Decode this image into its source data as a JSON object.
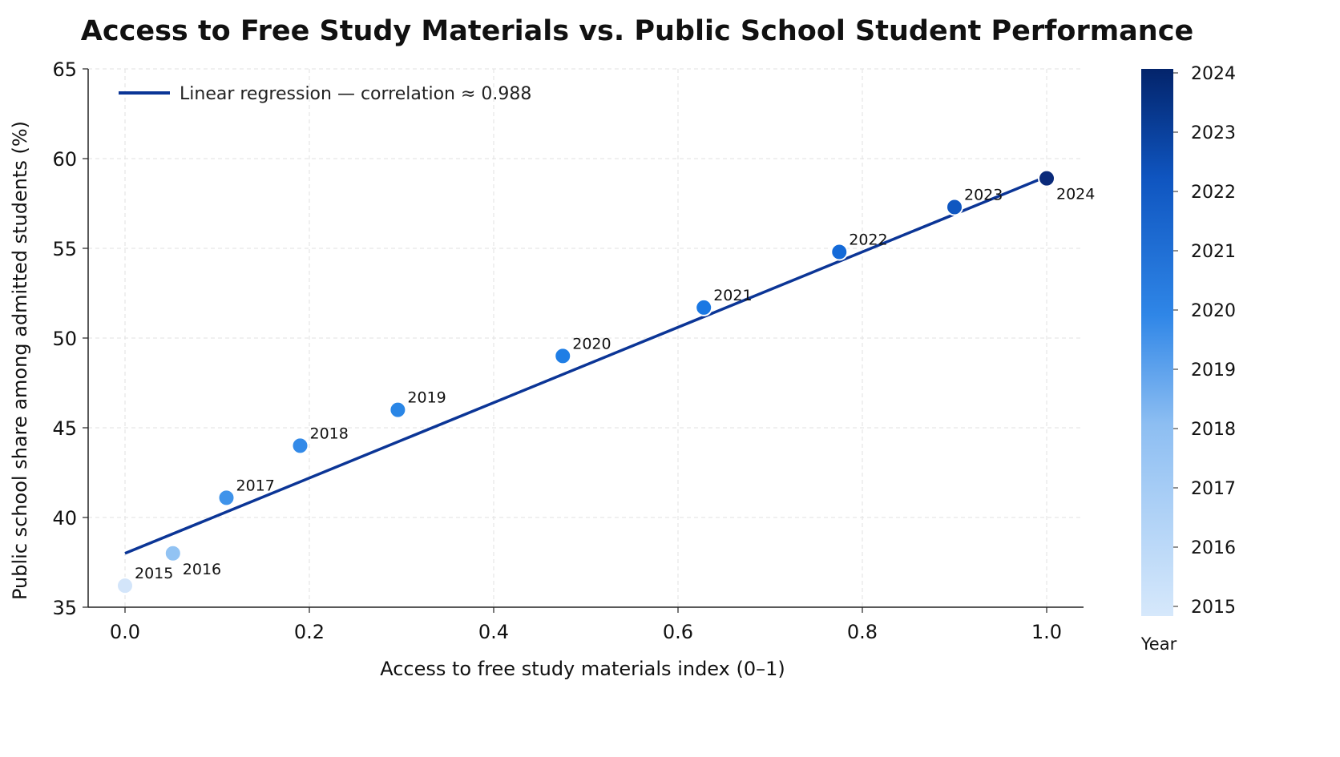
{
  "chart_data": {
    "type": "scatter",
    "title": "Access to Free Study Materials vs. Public School Student Performance",
    "xlabel": "Access to free study materials index (0–1)",
    "ylabel": "Public school share among admitted students (%)",
    "xlim": [
      -0.04,
      1.04
    ],
    "ylim": [
      35,
      65
    ],
    "xticks": [
      0.0,
      0.2,
      0.4,
      0.6,
      0.8,
      1.0
    ],
    "xtick_labels": [
      "0.0",
      "0.2",
      "0.4",
      "0.6",
      "0.8",
      "1.0"
    ],
    "yticks": [
      35,
      40,
      45,
      50,
      55,
      60,
      65
    ],
    "ytick_labels": [
      "35",
      "40",
      "45",
      "50",
      "55",
      "60",
      "65"
    ],
    "grid": true,
    "series": [
      {
        "x": [
          0.0,
          0.052,
          0.11,
          0.19,
          0.296,
          0.475,
          0.628,
          0.775,
          0.9,
          1.0
        ],
        "y": [
          36.2,
          38.0,
          41.1,
          44.0,
          46.0,
          49.0,
          51.7,
          54.8,
          57.3,
          58.9
        ],
        "labels": [
          "2015",
          "2016",
          "2017",
          "2018",
          "2019",
          "2020",
          "2021",
          "2022",
          "2023",
          "2024"
        ],
        "colors": [
          "#d3e5fa",
          "#92c3f3",
          "#3f93ea",
          "#338ae8",
          "#2a86e6",
          "#1f7ee5",
          "#1a78e3",
          "#146ad8",
          "#0f57c1",
          "#0a2a7a"
        ]
      }
    ],
    "regression": {
      "name": "Linear regression — correlation ≈ 0.988",
      "x": [
        0.0,
        1.0
      ],
      "y": [
        38.0,
        59.0
      ],
      "color": "#0b3596"
    },
    "legend_position": "top-left",
    "colorbar": {
      "label": "Year",
      "ticks": [
        "2015",
        "2016",
        "2017",
        "2018",
        "2019",
        "2020",
        "2021",
        "2022",
        "2023",
        "2024"
      ],
      "color_low": "#d6e8fb",
      "color_high": "#03246b"
    }
  }
}
